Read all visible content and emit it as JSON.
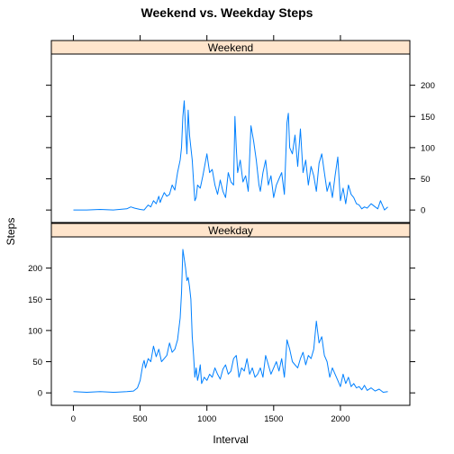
{
  "chart_data": {
    "type": "line",
    "title": "Weekend vs. Weekday Steps",
    "xlabel": "Interval",
    "ylabel": "Steps",
    "xlim": [
      -165,
      2520
    ],
    "ylim": [
      -20,
      250
    ],
    "xticks": [
      0,
      500,
      1000,
      1500,
      2000
    ],
    "yticks": [
      0,
      50,
      100,
      150,
      200
    ],
    "grid": false,
    "legend": "none",
    "line_color": "#0080ff",
    "strip_color": "#ffe5cc",
    "panels": [
      {
        "name": "Weekend",
        "x": [
          0,
          100,
          200,
          300,
          400,
          430,
          460,
          500,
          530,
          560,
          580,
          600,
          620,
          640,
          650,
          660,
          680,
          700,
          720,
          740,
          760,
          780,
          800,
          810,
          820,
          830,
          840,
          850,
          860,
          870,
          880,
          890,
          900,
          910,
          920,
          930,
          950,
          970,
          1000,
          1020,
          1040,
          1060,
          1080,
          1100,
          1120,
          1140,
          1160,
          1180,
          1200,
          1210,
          1220,
          1230,
          1250,
          1270,
          1290,
          1310,
          1330,
          1350,
          1370,
          1390,
          1400,
          1420,
          1440,
          1460,
          1480,
          1500,
          1520,
          1540,
          1560,
          1580,
          1600,
          1610,
          1620,
          1640,
          1660,
          1680,
          1700,
          1720,
          1740,
          1760,
          1780,
          1800,
          1820,
          1840,
          1860,
          1880,
          1900,
          1920,
          1940,
          1960,
          1980,
          2000,
          2020,
          2040,
          2060,
          2080,
          2100,
          2120,
          2140,
          2160,
          2180,
          2200,
          2230,
          2260,
          2280,
          2300,
          2330,
          2355
        ],
        "y": [
          0,
          0,
          1,
          0,
          2,
          5,
          3,
          1,
          0,
          8,
          5,
          15,
          10,
          22,
          12,
          18,
          28,
          22,
          25,
          40,
          32,
          60,
          80,
          100,
          150,
          175,
          130,
          90,
          160,
          120,
          100,
          80,
          45,
          15,
          20,
          40,
          35,
          55,
          90,
          60,
          65,
          40,
          25,
          48,
          30,
          20,
          60,
          45,
          40,
          150,
          100,
          60,
          80,
          45,
          55,
          30,
          135,
          110,
          80,
          40,
          30,
          60,
          80,
          40,
          55,
          20,
          40,
          50,
          60,
          25,
          140,
          155,
          100,
          90,
          120,
          70,
          130,
          60,
          80,
          40,
          70,
          55,
          30,
          75,
          90,
          60,
          30,
          45,
          20,
          55,
          85,
          15,
          35,
          10,
          40,
          25,
          20,
          10,
          8,
          2,
          5,
          3,
          10,
          5,
          2,
          15,
          0,
          5
        ],
        "y_ticks_left": [],
        "y_ticks_right": [
          0,
          50,
          100,
          150,
          200
        ],
        "x_ticks_top": [
          0,
          500,
          1000,
          1500,
          2000
        ]
      },
      {
        "name": "Weekday",
        "x": [
          0,
          100,
          200,
          300,
          400,
          450,
          480,
          500,
          520,
          530,
          540,
          560,
          580,
          600,
          620,
          640,
          660,
          680,
          700,
          720,
          740,
          760,
          780,
          800,
          810,
          820,
          830,
          840,
          850,
          860,
          870,
          880,
          890,
          900,
          910,
          920,
          930,
          940,
          950,
          960,
          980,
          1000,
          1020,
          1040,
          1060,
          1080,
          1100,
          1120,
          1140,
          1160,
          1180,
          1200,
          1220,
          1240,
          1260,
          1280,
          1300,
          1320,
          1340,
          1360,
          1380,
          1400,
          1420,
          1440,
          1460,
          1480,
          1500,
          1520,
          1540,
          1560,
          1580,
          1600,
          1620,
          1640,
          1660,
          1680,
          1700,
          1720,
          1740,
          1760,
          1780,
          1800,
          1820,
          1840,
          1860,
          1880,
          1900,
          1920,
          1940,
          1960,
          1980,
          2000,
          2020,
          2040,
          2060,
          2080,
          2100,
          2120,
          2140,
          2160,
          2180,
          2200,
          2230,
          2260,
          2290,
          2320,
          2355
        ],
        "y": [
          2,
          1,
          2,
          1,
          2,
          3,
          8,
          20,
          45,
          52,
          40,
          55,
          50,
          75,
          58,
          70,
          50,
          55,
          60,
          80,
          65,
          70,
          85,
          120,
          160,
          230,
          215,
          200,
          180,
          185,
          170,
          150,
          90,
          60,
          25,
          40,
          20,
          30,
          45,
          15,
          25,
          20,
          30,
          25,
          40,
          30,
          22,
          38,
          45,
          30,
          35,
          55,
          60,
          25,
          40,
          35,
          55,
          30,
          40,
          25,
          30,
          40,
          25,
          60,
          45,
          30,
          40,
          50,
          35,
          55,
          25,
          85,
          70,
          50,
          45,
          40,
          55,
          65,
          45,
          60,
          55,
          70,
          115,
          80,
          90,
          60,
          50,
          25,
          40,
          30,
          20,
          10,
          30,
          15,
          25,
          10,
          15,
          8,
          10,
          5,
          12,
          4,
          8,
          3,
          6,
          1,
          2
        ]
      }
    ]
  }
}
